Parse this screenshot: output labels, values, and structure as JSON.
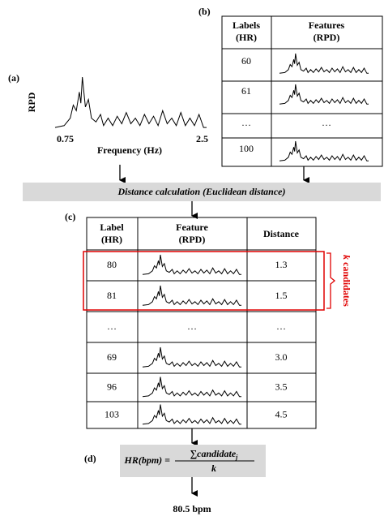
{
  "panel_a": {
    "label": "(a)",
    "y_label": "RPD",
    "x_min_label": "0.75",
    "x_max_label": "2.5",
    "x_label": "Frequency (Hz)"
  },
  "panel_b": {
    "label": "(b)",
    "table": {
      "header": [
        [
          "Labels",
          "(HR)"
        ],
        [
          "Features",
          "(RPD)"
        ]
      ],
      "rows": [
        {
          "label": "60"
        },
        {
          "label": "61"
        },
        {
          "label": "…",
          "feature": "…"
        },
        {
          "label": "100"
        }
      ]
    }
  },
  "distance_box": {
    "text": "Distance calculation (Euclidean distance)"
  },
  "panel_c": {
    "label": "(c)",
    "table": {
      "header": [
        [
          "Label",
          "(HR)"
        ],
        [
          "Feature",
          "(RPD)"
        ],
        [
          "Distance"
        ]
      ],
      "rows": [
        {
          "label": "80",
          "distance": "1.3"
        },
        {
          "label": "81",
          "distance": "1.5"
        },
        {
          "label": "…",
          "feature": "…",
          "distance": "…"
        },
        {
          "label": "69",
          "distance": "3.0"
        },
        {
          "label": "96",
          "distance": "3.5"
        },
        {
          "label": "103",
          "distance": "4.5"
        }
      ]
    },
    "candidates_label": {
      "k": "k",
      "text": "candidates"
    }
  },
  "panel_d": {
    "label": "(d)",
    "formula": {
      "lhs": "HR(bpm) =",
      "numerator": "∑candidate",
      "subscript": "j",
      "denominator": "k"
    },
    "result": "80.5 bpm"
  }
}
